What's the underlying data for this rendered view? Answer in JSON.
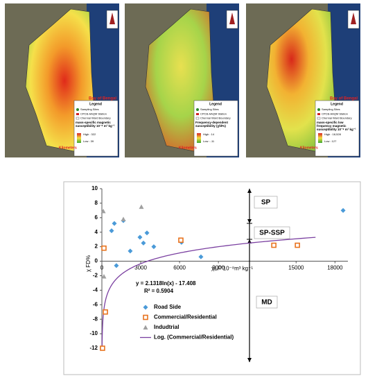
{
  "maps": [
    {
      "legend": "Legend",
      "sites": "Sampling Sites",
      "station": "CPCB-AAQM Station",
      "boundary": "Chennai Ward Boundary",
      "quantity": "mass-specific magnetic susceptibility 10⁻⁸ m³ kg⁻¹",
      "high": "High : 322",
      "low": "Low : 39",
      "sea": "Bay of Bengal",
      "scale": "Kilometers"
    },
    {
      "legend": "Legend",
      "sites": "Sampling Sites",
      "station": "CPCB-AAQM Station",
      "boundary": "Chennai Ward Boundary",
      "quantity": "Frequency-dependent susceptibility (χfd%)",
      "high": "High : 14",
      "low": "Low : -11",
      "scale": "Kilometers"
    },
    {
      "legend": "Legend",
      "sites": "Sampling Sites",
      "station": "CPCB-AAQM Station",
      "boundary": "Chennai Ward Boundary",
      "quantity": "mass-specific low frequency magnetic susceptibility 10⁻⁸ m³ kg⁻¹",
      "high": "High : 18,528",
      "low": "Low : 127",
      "sea": "Bay of Bengal",
      "scale": "Kilometers"
    }
  ],
  "chart_data": {
    "type": "scatter",
    "x_label": "χLF*10⁻⁸m³ kg⁻¹",
    "y_label": "χ FD%",
    "xlim": [
      0,
      19000
    ],
    "ylim": [
      -12,
      10
    ],
    "xticks": [
      0,
      3000,
      6000,
      9000,
      15000,
      18000
    ],
    "yticks": [
      -12,
      -10,
      -8,
      -6,
      -4,
      -2,
      0,
      2,
      4,
      6,
      8,
      10
    ],
    "zones": [
      "SP",
      "SP-SSP",
      "MD"
    ],
    "series": [
      {
        "name": "Road Side",
        "color": "#4a9ad8",
        "marker": "diamond",
        "x": [
          964,
          750,
          1660,
          2940,
          2190,
          1120,
          3480,
          3210,
          4010,
          7650,
          6150,
          18630
        ],
        "values": [
          5.2,
          4.2,
          5.6,
          3.3,
          1.4,
          -0.6,
          3.9,
          2.5,
          2.0,
          0.6,
          2.6,
          7.0
        ]
      },
      {
        "name": "Commercial/Residential",
        "color": "#e8731e",
        "marker": "square",
        "x": [
          160,
          270,
          50,
          6100,
          13280,
          15100
        ],
        "values": [
          1.8,
          -7.0,
          -12.0,
          2.9,
          2.2,
          2.2
        ]
      },
      {
        "name": "Indudtrial",
        "color": "#a0a0a0",
        "marker": "triangle",
        "x": [
          110,
          1660,
          3050,
          160
        ],
        "values": [
          6.9,
          5.8,
          7.5,
          -2.1
        ]
      }
    ],
    "trendline": {
      "name": "Log. (Commercial/Residential)",
      "color": "#7a3fa0",
      "a": 2.1318,
      "b": -17.408,
      "x_range": [
        13,
        16500
      ],
      "equation": "y = 2.1318ln(x) - 17.408",
      "r2": "R² = 0.5904"
    }
  }
}
